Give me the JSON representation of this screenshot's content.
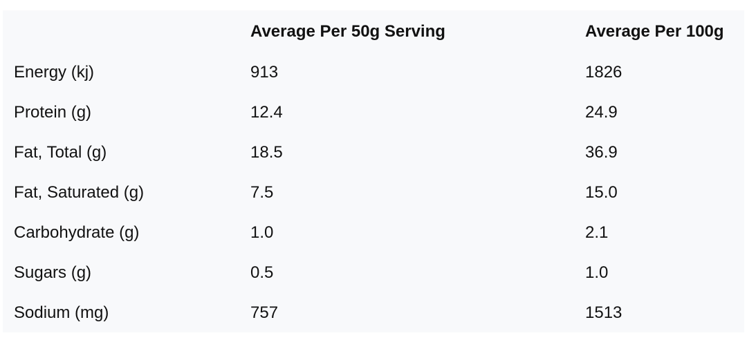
{
  "headers": [
    "",
    "Average Per 50g Serving",
    "Average Per 100g"
  ],
  "rows": [
    [
      "Energy (kj)",
      "913",
      "1826"
    ],
    [
      "Protein (g)",
      "12.4",
      "24.9"
    ],
    [
      "Fat, Total (g)",
      "18.5",
      "36.9"
    ],
    [
      "Fat, Saturated (g)",
      "7.5",
      "15.0"
    ],
    [
      "Carbohydrate (g)",
      "1.0",
      "2.1"
    ],
    [
      "Sugars (g)",
      "0.5",
      "1.0"
    ],
    [
      "Sodium (mg)",
      "757",
      "1513"
    ]
  ]
}
